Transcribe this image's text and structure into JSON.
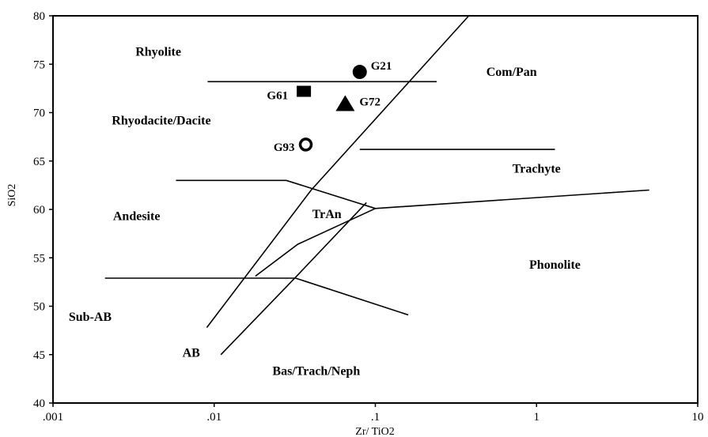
{
  "chart_data": {
    "type": "scatter",
    "xlabel": "Zr/ TiO2",
    "ylabel": "SiO2",
    "x_scale": "log",
    "xlim": [
      0.001,
      10
    ],
    "ylim": [
      40,
      80
    ],
    "x_ticks": [
      ".001",
      ".01",
      ".1",
      "1",
      "10"
    ],
    "y_ticks": [
      "40",
      "45",
      "50",
      "55",
      "60",
      "65",
      "70",
      "75",
      "80"
    ],
    "grid": false,
    "points": [
      {
        "label": "G21",
        "marker": "filled-circle",
        "x": 0.08,
        "y": 74.2
      },
      {
        "label": "G61",
        "marker": "filled-square",
        "x": 0.036,
        "y": 72.2
      },
      {
        "label": "G72",
        "marker": "filled-triangle",
        "x": 0.065,
        "y": 70.9
      },
      {
        "label": "G93",
        "marker": "open-circle",
        "x": 0.037,
        "y": 66.7
      }
    ],
    "fields": [
      {
        "label": "Rhyolite",
        "x": 0.0045,
        "y": 76.3
      },
      {
        "label": "Com/Pan",
        "x": 0.7,
        "y": 74.2
      },
      {
        "label": "Rhyodacite/Dacite",
        "x": 0.0047,
        "y": 69.2
      },
      {
        "label": "Trachyte",
        "x": 1.0,
        "y": 64.2
      },
      {
        "label": "Andesite",
        "x": 0.0033,
        "y": 59.3
      },
      {
        "label": "TrAn",
        "x": 0.05,
        "y": 59.5
      },
      {
        "label": "Phonolite",
        "x": 1.3,
        "y": 54.3
      },
      {
        "label": "Sub-AB",
        "x": 0.0017,
        "y": 48.9
      },
      {
        "label": "AB",
        "x": 0.0072,
        "y": 45.2
      },
      {
        "label": "Bas/Trach/Neph",
        "x": 0.043,
        "y": 43.3
      }
    ],
    "boundaries": [
      [
        [
          0.009,
          47.8
        ],
        [
          0.04,
          62
        ],
        [
          0.38,
          80
        ]
      ],
      [
        [
          0.0091,
          73.2
        ],
        [
          0.24,
          73.2
        ]
      ],
      [
        [
          0.08,
          66.2
        ],
        [
          1.3,
          66.2
        ]
      ],
      [
        [
          0.0058,
          63
        ],
        [
          0.028,
          63
        ],
        [
          0.1,
          60.1
        ],
        [
          5,
          62
        ]
      ],
      [
        [
          0.018,
          53.1
        ],
        [
          0.033,
          56.4
        ],
        [
          0.1,
          60.1
        ]
      ],
      [
        [
          0.0021,
          52.9
        ],
        [
          0.032,
          52.9
        ],
        [
          0.16,
          49.1
        ]
      ],
      [
        [
          0.011,
          45
        ],
        [
          0.032,
          53
        ],
        [
          0.088,
          60.7
        ]
      ]
    ]
  }
}
